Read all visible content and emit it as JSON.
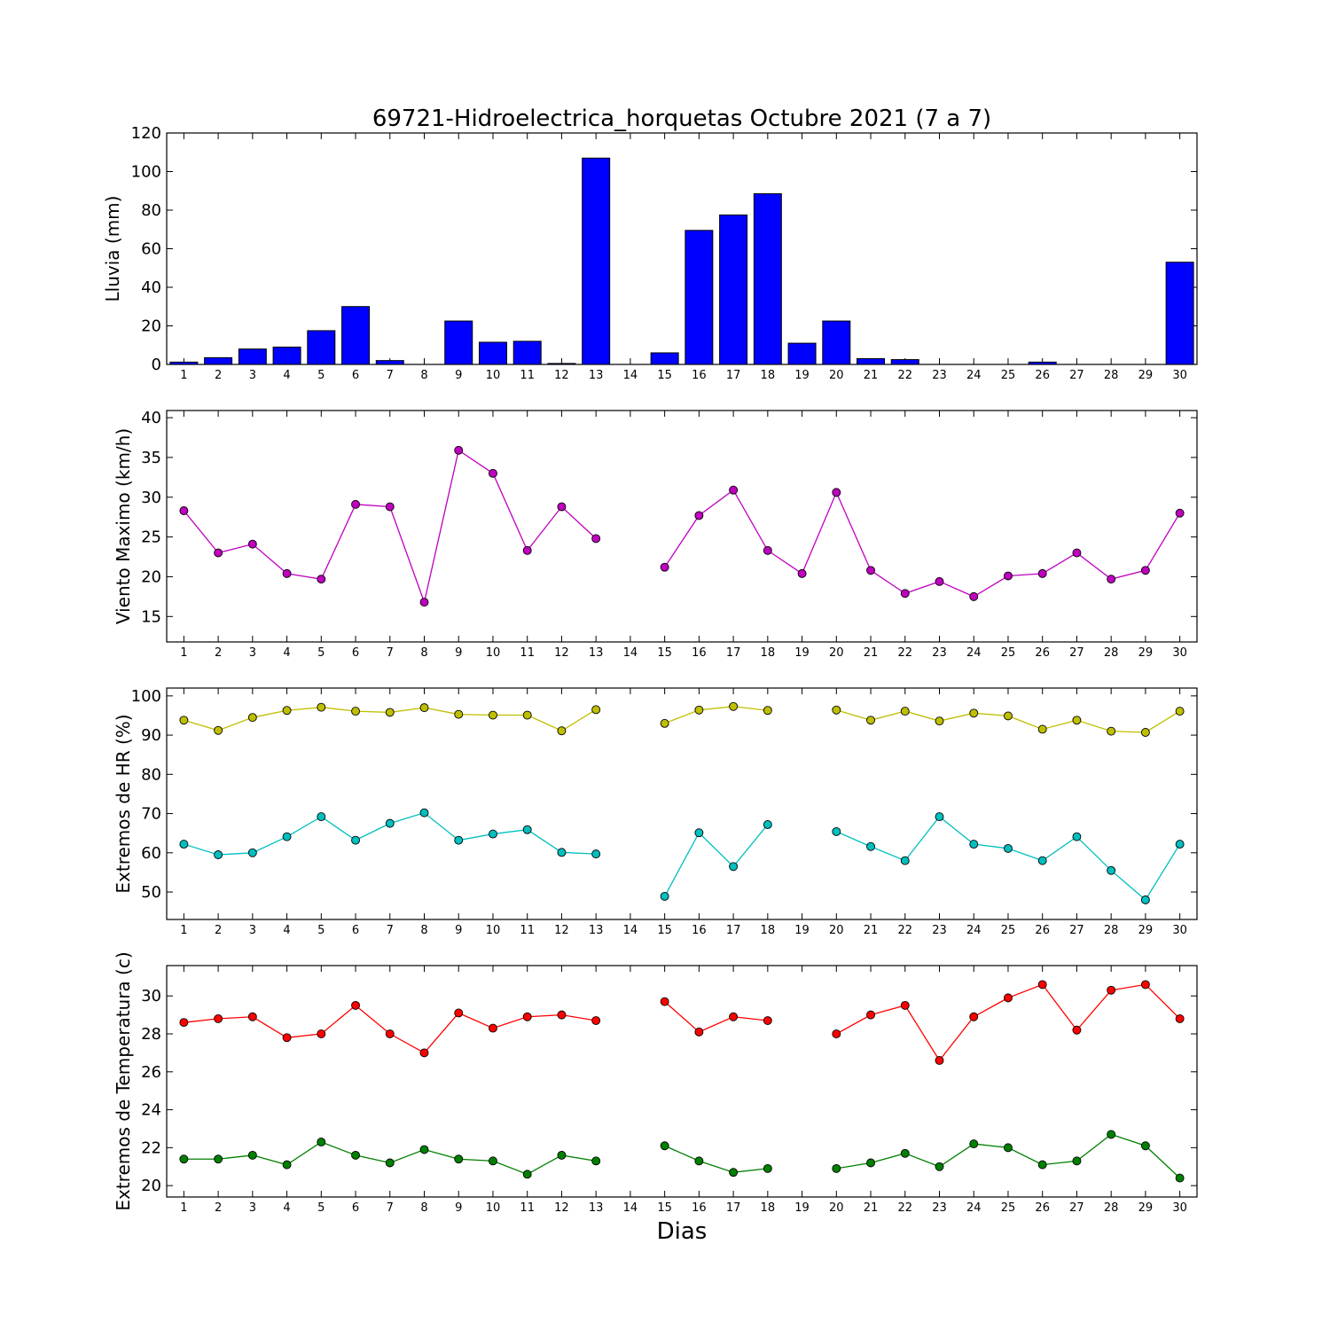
{
  "title": "69721-Hidroelectrica_horquetas Octubre 2021  (7 a 7)",
  "xlabel": "Dias",
  "colors": {
    "bar": "#0000ff",
    "wind": "#bf00bf",
    "hr_max": "#bfbf00",
    "hr_min": "#00bfbf",
    "temp_max": "#ff0000",
    "temp_min": "#008000"
  },
  "chart_data": [
    {
      "type": "bar",
      "ylabel": "Lluvia (mm)",
      "x": [
        1,
        2,
        3,
        4,
        5,
        6,
        7,
        8,
        9,
        10,
        11,
        12,
        13,
        14,
        15,
        16,
        17,
        18,
        19,
        20,
        21,
        22,
        23,
        24,
        25,
        26,
        27,
        28,
        29,
        30
      ],
      "ylim": [
        0,
        120
      ],
      "yticks": [
        0,
        20,
        40,
        60,
        80,
        100,
        120
      ],
      "series": [
        {
          "values": [
            1.2,
            3.5,
            8,
            9,
            17.5,
            30,
            2,
            0,
            22.5,
            11.5,
            12,
            0.5,
            107,
            0,
            6,
            69.5,
            77.5,
            88.5,
            11,
            22.5,
            3,
            2.5,
            0,
            0,
            0,
            1.2,
            0,
            0,
            0,
            53
          ]
        }
      ]
    },
    {
      "type": "line",
      "ylabel": "Viento Maximo (km/h)",
      "x": [
        1,
        2,
        3,
        4,
        5,
        6,
        7,
        8,
        9,
        10,
        11,
        12,
        13,
        14,
        15,
        16,
        17,
        18,
        19,
        20,
        21,
        22,
        23,
        24,
        25,
        26,
        27,
        28,
        29,
        30
      ],
      "ylim": [
        11.8,
        40.9
      ],
      "yticks": [
        15,
        20,
        25,
        30,
        35,
        40
      ],
      "series": [
        {
          "values": [
            28.3,
            23,
            24.1,
            20.4,
            19.7,
            29.1,
            28.8,
            16.8,
            35.9,
            33,
            23.3,
            28.8,
            24.8,
            null,
            21.2,
            27.7,
            30.9,
            23.3,
            20.4,
            30.6,
            20.8,
            17.9,
            19.4,
            17.5,
            20.1,
            20.4,
            23,
            19.7,
            20.8,
            28
          ]
        }
      ]
    },
    {
      "type": "line",
      "ylabel": "Extremos de HR (%)",
      "x": [
        1,
        2,
        3,
        4,
        5,
        6,
        7,
        8,
        9,
        10,
        11,
        12,
        13,
        14,
        15,
        16,
        17,
        18,
        19,
        20,
        21,
        22,
        23,
        24,
        25,
        26,
        27,
        28,
        29,
        30
      ],
      "ylim": [
        43,
        102
      ],
      "yticks": [
        50,
        60,
        70,
        80,
        90,
        100
      ],
      "series": [
        {
          "values": [
            93.8,
            91.2,
            94.5,
            96.3,
            97.1,
            96.1,
            95.8,
            97,
            95.3,
            95.1,
            95.1,
            91.1,
            96.5,
            null,
            93,
            96.4,
            97.3,
            96.3,
            null,
            96.4,
            93.8,
            96.1,
            93.6,
            95.6,
            94.9,
            91.5,
            93.8,
            91,
            90.7,
            96.1
          ]
        },
        {
          "values": [
            62.2,
            59.5,
            60,
            64.1,
            69.2,
            63.2,
            67.5,
            70.2,
            63.2,
            64.8,
            65.9,
            60.1,
            59.7,
            null,
            48.9,
            65.1,
            56.5,
            67.2,
            null,
            65.4,
            61.6,
            58,
            69.2,
            62.2,
            61.1,
            58,
            64.1,
            55.5,
            48,
            62.2
          ]
        }
      ]
    },
    {
      "type": "line",
      "ylabel": "Extremos de Temperatura (c)",
      "x": [
        1,
        2,
        3,
        4,
        5,
        6,
        7,
        8,
        9,
        10,
        11,
        12,
        13,
        14,
        15,
        16,
        17,
        18,
        19,
        20,
        21,
        22,
        23,
        24,
        25,
        26,
        27,
        28,
        29,
        30
      ],
      "ylim": [
        19.4,
        31.6
      ],
      "yticks": [
        20,
        22,
        24,
        26,
        28,
        30
      ],
      "series": [
        {
          "values": [
            28.6,
            28.8,
            28.9,
            27.8,
            28,
            29.5,
            28,
            27,
            29.1,
            28.3,
            28.9,
            29,
            28.7,
            null,
            29.7,
            28.1,
            28.9,
            28.7,
            null,
            28,
            29,
            29.5,
            26.6,
            28.9,
            29.9,
            30.6,
            28.2,
            30.3,
            30.6,
            28.8
          ]
        },
        {
          "values": [
            21.4,
            21.4,
            21.6,
            21.1,
            22.3,
            21.6,
            21.2,
            21.9,
            21.4,
            21.3,
            20.6,
            21.6,
            21.3,
            null,
            22.1,
            21.3,
            20.7,
            20.9,
            null,
            20.9,
            21.2,
            21.7,
            21,
            22.2,
            22,
            21.1,
            21.3,
            22.7,
            22.1,
            20.4
          ]
        }
      ]
    }
  ]
}
